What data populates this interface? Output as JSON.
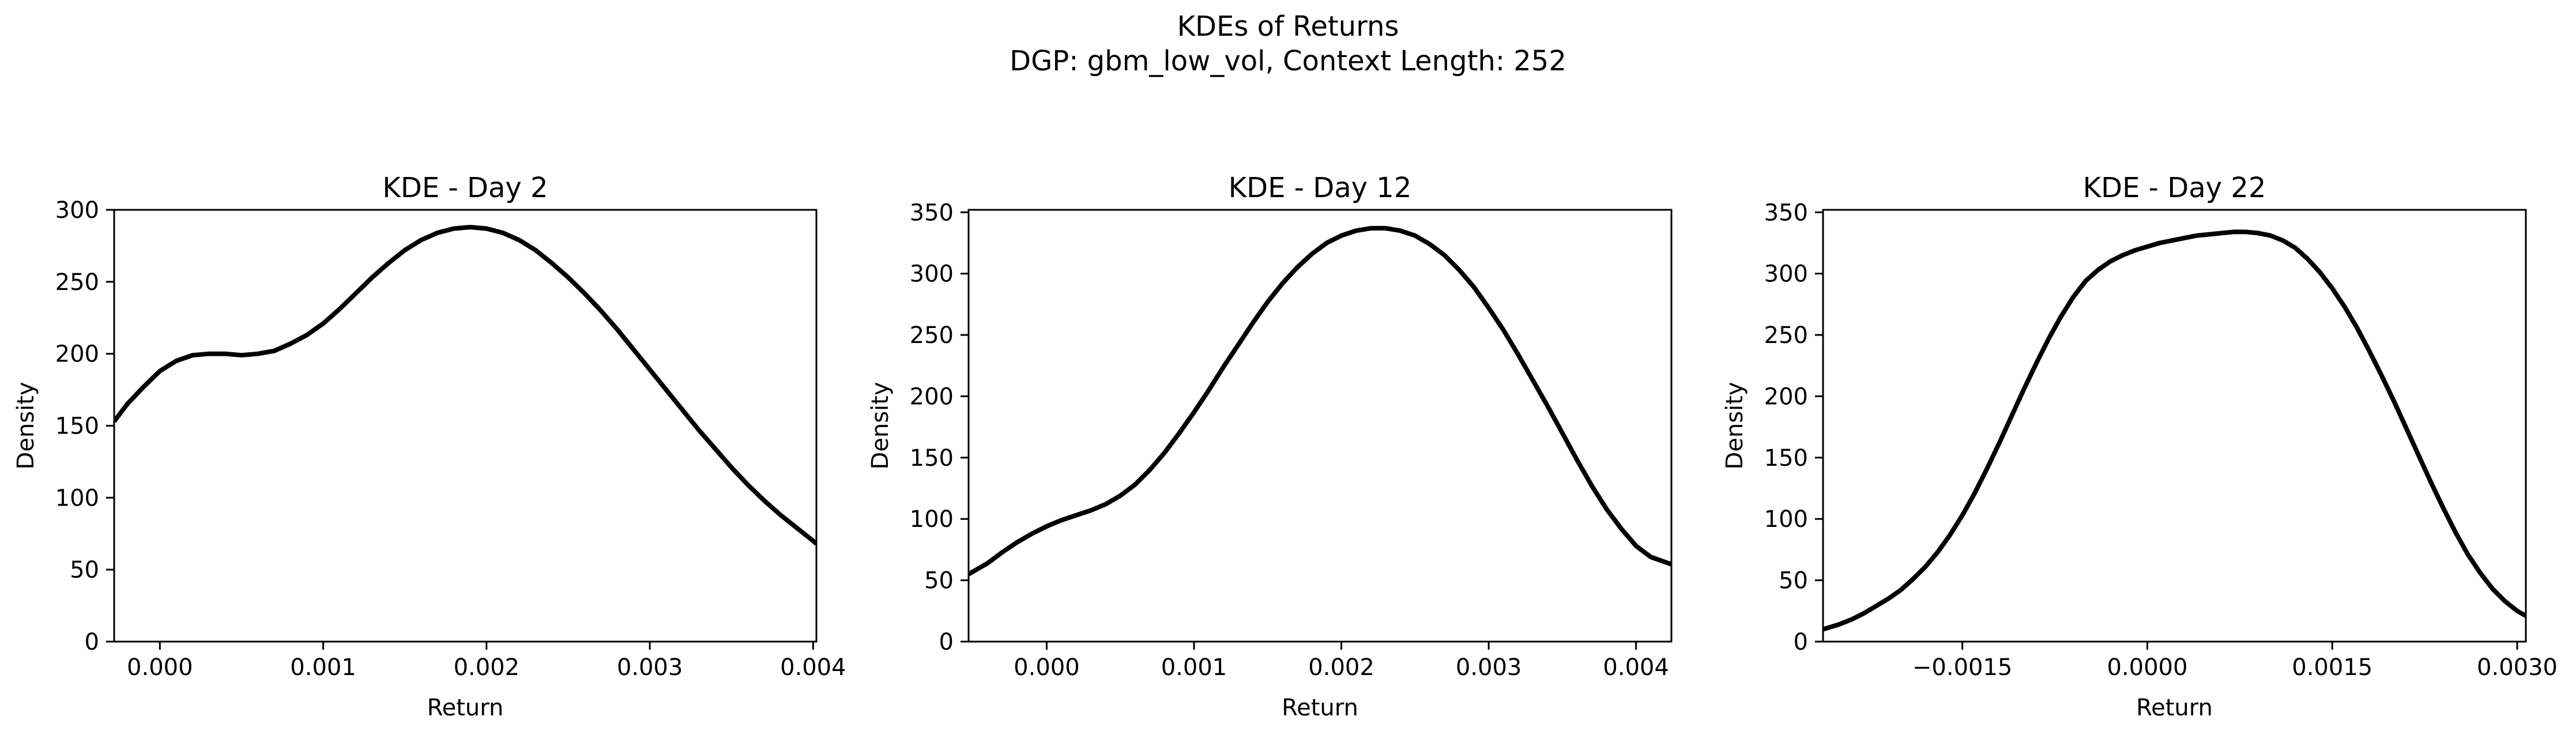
{
  "figure": {
    "suptitle_line1": "KDEs of Returns",
    "suptitle_line2": "DGP: gbm_low_vol, Context Length: 252"
  },
  "chart_data": [
    {
      "type": "line",
      "title": "KDE - Day 2",
      "xlabel": "Return",
      "ylabel": "Density",
      "xlim": [
        -0.00028,
        0.00402
      ],
      "ylim": [
        0,
        300
      ],
      "xticks": [
        0.0,
        0.001,
        0.002,
        0.003,
        0.004
      ],
      "xtick_labels": [
        "0.000",
        "0.001",
        "0.002",
        "0.003",
        "0.004"
      ],
      "yticks": [
        0,
        50,
        100,
        150,
        200,
        250,
        300
      ],
      "ytick_labels": [
        "0",
        "50",
        "100",
        "150",
        "200",
        "250",
        "300"
      ],
      "grid": false,
      "series": [
        {
          "color": "#000000",
          "x": [
            -0.00028,
            -0.0002,
            -0.0001,
            0.0,
            0.0001,
            0.0002,
            0.0003,
            0.0004,
            0.0005,
            0.0006,
            0.0007,
            0.0008,
            0.0009,
            0.001,
            0.0011,
            0.0012,
            0.0013,
            0.0014,
            0.0015,
            0.0016,
            0.0017,
            0.0018,
            0.0019,
            0.002,
            0.0021,
            0.0022,
            0.0023,
            0.0024,
            0.0025,
            0.0026,
            0.0027,
            0.0028,
            0.0029,
            0.003,
            0.0031,
            0.0032,
            0.0033,
            0.0034,
            0.0035,
            0.0036,
            0.0037,
            0.0038,
            0.0039,
            0.004,
            0.00402
          ],
          "y": [
            153,
            165,
            177,
            188,
            195,
            199,
            200,
            200,
            199,
            200,
            202,
            207,
            213,
            221,
            231,
            242,
            253,
            263,
            272,
            279,
            284,
            287,
            288,
            287,
            284,
            279,
            272,
            263,
            253,
            242,
            230,
            217,
            203,
            189,
            175,
            161,
            147,
            134,
            121,
            109,
            98,
            88,
            79,
            70,
            68
          ]
        }
      ]
    },
    {
      "type": "line",
      "title": "KDE - Day 12",
      "xlabel": "Return",
      "ylabel": "Density",
      "xlim": [
        -0.00053,
        0.00424
      ],
      "ylim": [
        0,
        352
      ],
      "xticks": [
        0.0,
        0.001,
        0.002,
        0.003,
        0.004
      ],
      "xtick_labels": [
        "0.000",
        "0.001",
        "0.002",
        "0.003",
        "0.004"
      ],
      "yticks": [
        0,
        50,
        100,
        150,
        200,
        250,
        300,
        350
      ],
      "ytick_labels": [
        "0",
        "50",
        "100",
        "150",
        "200",
        "250",
        "300",
        "350"
      ],
      "grid": false,
      "series": [
        {
          "color": "#000000",
          "x": [
            -0.00053,
            -0.0004,
            -0.0003,
            -0.0002,
            -0.0001,
            0.0,
            0.0001,
            0.0002,
            0.0003,
            0.0004,
            0.0005,
            0.0006,
            0.0007,
            0.0008,
            0.0009,
            0.001,
            0.0011,
            0.0012,
            0.0013,
            0.0014,
            0.0015,
            0.0016,
            0.0017,
            0.0018,
            0.0019,
            0.002,
            0.0021,
            0.0022,
            0.0023,
            0.0024,
            0.0025,
            0.0026,
            0.0027,
            0.0028,
            0.0029,
            0.003,
            0.0031,
            0.0032,
            0.0033,
            0.0034,
            0.0035,
            0.0036,
            0.0037,
            0.0038,
            0.0039,
            0.004,
            0.0041,
            0.00424
          ],
          "y": [
            55,
            64,
            73,
            81,
            88,
            94,
            99,
            103,
            107,
            112,
            119,
            128,
            140,
            154,
            170,
            187,
            205,
            224,
            242,
            260,
            277,
            292,
            305,
            316,
            325,
            331,
            335,
            337,
            337,
            335,
            331,
            324,
            315,
            303,
            289,
            272,
            254,
            234,
            213,
            192,
            170,
            148,
            127,
            108,
            92,
            78,
            69,
            63
          ]
        }
      ]
    },
    {
      "type": "line",
      "title": "KDE - Day 22",
      "xlabel": "Return",
      "ylabel": "Density",
      "xlim": [
        -0.00263,
        0.00307
      ],
      "ylim": [
        0,
        352
      ],
      "xticks": [
        -0.0015,
        0.0,
        0.0015,
        0.003
      ],
      "xtick_labels": [
        "−0.0015",
        "0.0000",
        "0.0015",
        "0.0030"
      ],
      "yticks": [
        0,
        50,
        100,
        150,
        200,
        250,
        300,
        350
      ],
      "ytick_labels": [
        "0",
        "50",
        "100",
        "150",
        "200",
        "250",
        "300",
        "350"
      ],
      "grid": false,
      "series": [
        {
          "color": "#000000",
          "x": [
            -0.00263,
            -0.0025,
            -0.0024,
            -0.0023,
            -0.0022,
            -0.0021,
            -0.002,
            -0.0019,
            -0.0018,
            -0.0017,
            -0.0016,
            -0.0015,
            -0.0014,
            -0.0013,
            -0.0012,
            -0.0011,
            -0.001,
            -0.0009,
            -0.0008,
            -0.0007,
            -0.0006,
            -0.0005,
            -0.0004,
            -0.0003,
            -0.0002,
            -0.0001,
            0.0,
            0.0001,
            0.0002,
            0.0003,
            0.0004,
            0.0005,
            0.0006,
            0.0007,
            0.0008,
            0.0009,
            0.001,
            0.0011,
            0.0012,
            0.0013,
            0.0014,
            0.0015,
            0.0016,
            0.0017,
            0.0018,
            0.0019,
            0.002,
            0.0021,
            0.0022,
            0.0023,
            0.0024,
            0.0025,
            0.0026,
            0.0027,
            0.0028,
            0.0029,
            0.003,
            0.00307
          ],
          "y": [
            10,
            14,
            18,
            23,
            29,
            35,
            42,
            51,
            61,
            73,
            87,
            103,
            121,
            141,
            162,
            184,
            206,
            227,
            247,
            265,
            281,
            294,
            303,
            310,
            315,
            319,
            322,
            325,
            327,
            329,
            331,
            332,
            333,
            334,
            334,
            333,
            331,
            327,
            321,
            312,
            301,
            288,
            273,
            256,
            237,
            217,
            196,
            174,
            152,
            130,
            109,
            89,
            71,
            56,
            43,
            33,
            25,
            21
          ]
        }
      ]
    }
  ]
}
